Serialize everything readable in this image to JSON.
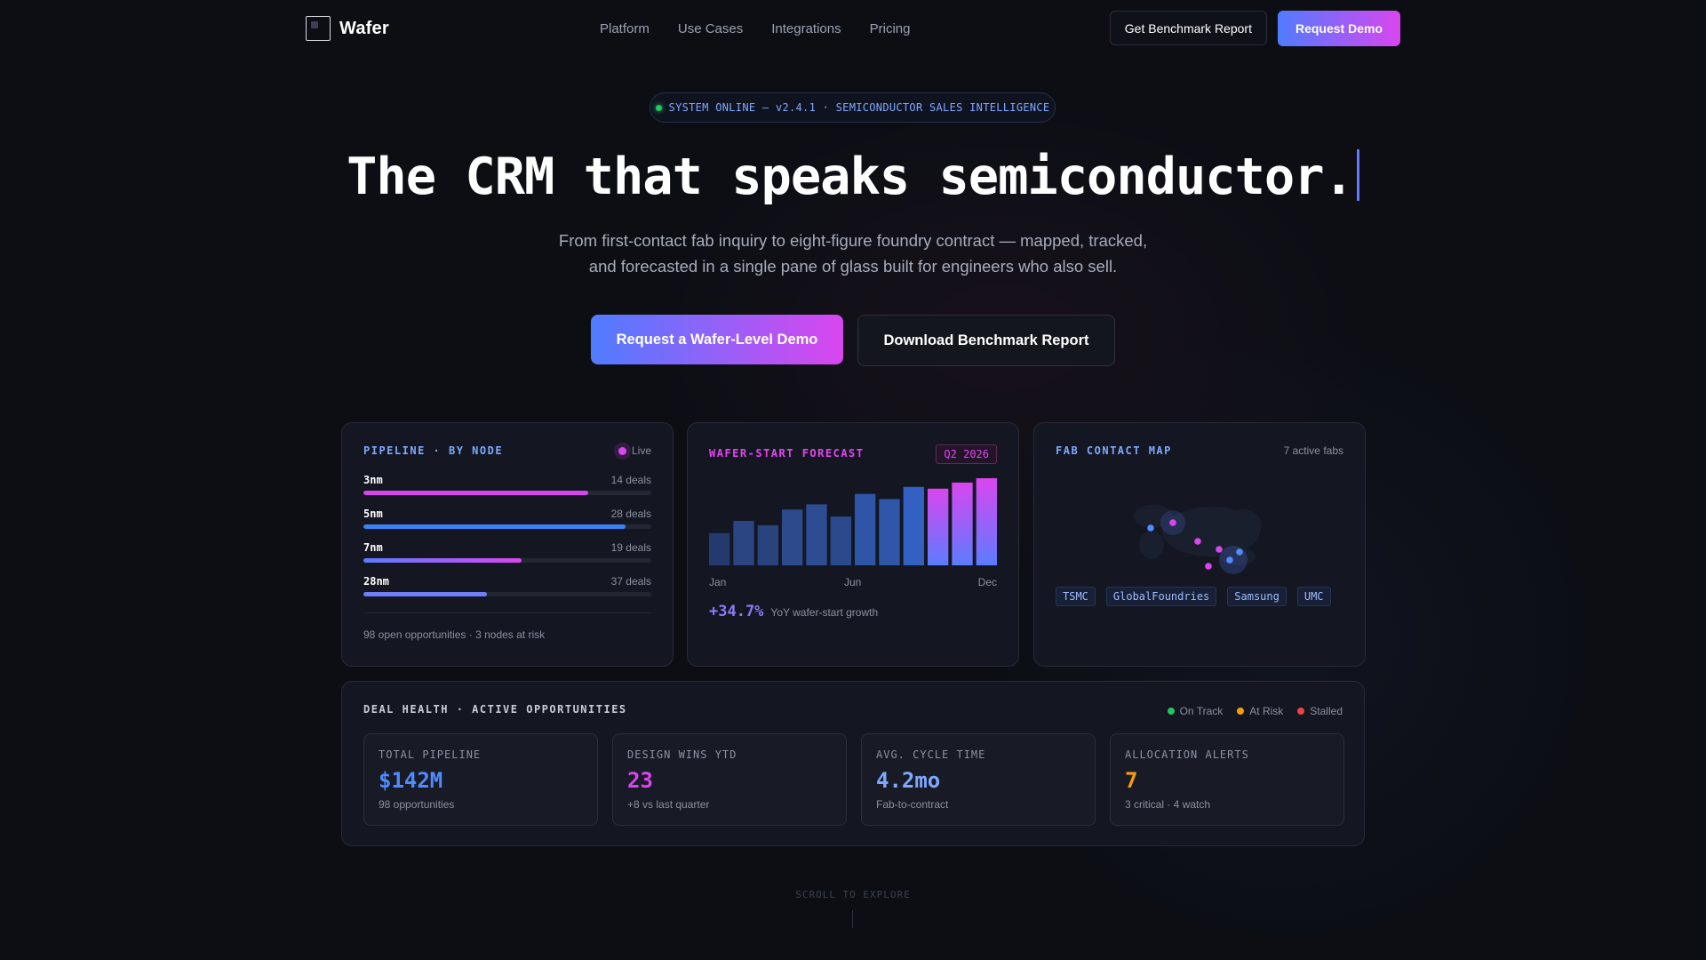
{
  "nav": {
    "brand": "Wafer",
    "links": [
      "Platform",
      "Use Cases",
      "Integrations",
      "Pricing"
    ],
    "benchmark_button": "Get Benchmark Report",
    "demo_button": "Request Demo"
  },
  "hero": {
    "status": "SYSTEM ONLINE — v2.4.1 · SEMICONDUCTOR SALES INTELLIGENCE",
    "headline": "The CRM that speaks semiconductor.",
    "subtitle_line1": "From first-contact fab inquiry to eight-figure foundry contract — mapped, tracked,",
    "subtitle_line2": "and forecasted in a single pane of glass built for engineers who also sell.",
    "primary_cta": "Request a Wafer-Level Demo",
    "secondary_cta": "Download Benchmark Report"
  },
  "pipeline": {
    "title": "PIPELINE · BY NODE",
    "live_label": "Live",
    "nodes": [
      {
        "name": "3nm",
        "deals": "14 deals",
        "fill": 0.78,
        "color": "#d946ef"
      },
      {
        "name": "5nm",
        "deals": "28 deals",
        "fill": 0.91,
        "color": "#3b82f6"
      },
      {
        "name": "7nm",
        "deals": "19 deals",
        "fill": 0.55,
        "color": "grad"
      },
      {
        "name": "28nm",
        "deals": "37 deals",
        "fill": 0.43,
        "color": "#6f7ff7"
      }
    ],
    "footer": "98 open opportunities · 3 nodes at risk"
  },
  "forecast": {
    "title": "WAFER-START FORECAST",
    "badge": "Q2 2026",
    "month_labels": [
      "Jan",
      "Jun",
      "Dec"
    ],
    "growth_value": "+34.7%",
    "growth_label": "YoY wafer-start growth"
  },
  "chart_data": {
    "type": "bar",
    "categories": [
      "Jan",
      "Feb",
      "Mar",
      "Apr",
      "May",
      "Jun",
      "Jul",
      "Aug",
      "Sep",
      "Oct",
      "Nov",
      "Dec"
    ],
    "values": [
      37,
      51,
      46,
      64,
      70,
      56,
      82,
      76,
      90,
      88,
      95,
      100
    ],
    "ylim": [
      0,
      100
    ],
    "grid": false
  },
  "map": {
    "title": "FAB CONTACT MAP",
    "count": "7 active fabs",
    "fabs": [
      "TSMC",
      "GlobalFoundries",
      "Samsung",
      "UMC"
    ]
  },
  "health": {
    "title": "DEAL HEALTH · ACTIVE OPPORTUNITIES",
    "legend": [
      {
        "label": "On Track",
        "color": "#22c55e"
      },
      {
        "label": "At Risk",
        "color": "#f59e0b"
      },
      {
        "label": "Stalled",
        "color": "#ef4444"
      }
    ],
    "kpis": [
      {
        "label": "TOTAL PIPELINE",
        "value": "$142M",
        "sub": "98 opportunities",
        "color": "#4f8bff"
      },
      {
        "label": "DESIGN WINS YTD",
        "value": "23",
        "sub": "+8 vs last quarter",
        "color": "#d946ef"
      },
      {
        "label": "AVG. CYCLE TIME",
        "value": "4.2mo",
        "sub": "Fab-to-contract",
        "color": "#7fa8ff"
      },
      {
        "label": "ALLOCATION ALERTS",
        "value": "7",
        "sub": "3 critical · 4 watch",
        "color": "#f59e0b"
      }
    ]
  },
  "scroll_hint": "SCROLL TO EXPLORE"
}
